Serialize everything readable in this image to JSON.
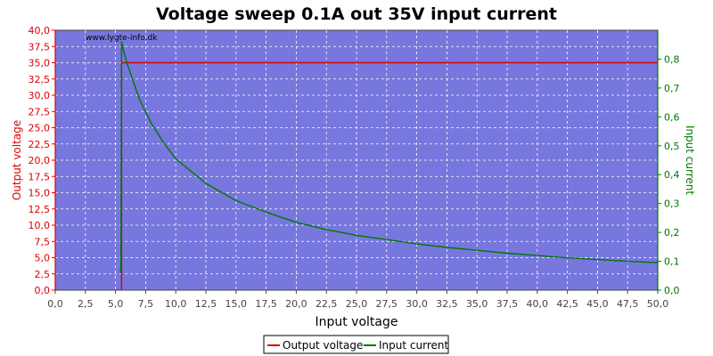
{
  "chart_data": {
    "type": "line",
    "title": "Voltage sweep 0.1A out 35V input current",
    "watermark": "www.lygte-info.dk",
    "xlabel": "Input voltage",
    "ylabel_left": "Output voltage",
    "ylabel_right": "Input current",
    "xlim": [
      0,
      50
    ],
    "ylim_left": [
      0,
      40
    ],
    "ylim_right": [
      0,
      0.9
    ],
    "x_ticks": [
      "0,0",
      "2,5",
      "5,0",
      "7,5",
      "10,0",
      "12,5",
      "15,0",
      "17,5",
      "20,0",
      "22,5",
      "25,0",
      "27,5",
      "30,0",
      "32,5",
      "35,0",
      "37,5",
      "40,0",
      "42,5",
      "45,0",
      "47,5",
      "50,0"
    ],
    "y_left_ticks": [
      "0,0",
      "2,5",
      "5,0",
      "7,5",
      "10,0",
      "12,5",
      "15,0",
      "17,5",
      "20,0",
      "22,5",
      "25,0",
      "27,5",
      "30,0",
      "32,5",
      "35,0",
      "37,5",
      "40,0"
    ],
    "y_right_ticks": [
      "0,0",
      "0,1",
      "0,2",
      "0,3",
      "0,4",
      "0,5",
      "0,6",
      "0,7",
      "0,8"
    ],
    "grid": true,
    "legend_position": "bottom-center",
    "colors": {
      "plot_bg": "#7777dd",
      "output_voltage": "#dd0000",
      "input_current": "#007700",
      "left_axis": "#dd0000",
      "right_axis": "#007700"
    },
    "series": [
      {
        "name": "Output voltage",
        "axis": "left",
        "x": [
          5.5,
          5.5,
          5.6,
          50.0
        ],
        "y": [
          0.0,
          35.0,
          35.0,
          35.0
        ]
      },
      {
        "name": "Input current",
        "axis": "right",
        "x": [
          5.4,
          5.45,
          5.5,
          5.6,
          6.0,
          7.0,
          8.0,
          9.0,
          10.0,
          12.5,
          15.0,
          17.5,
          20.0,
          22.5,
          25.0,
          27.5,
          30.0,
          32.5,
          35.0,
          37.5,
          40.0,
          42.5,
          45.0,
          47.5,
          50.0
        ],
        "y": [
          0.06,
          0.08,
          0.86,
          0.84,
          0.78,
          0.66,
          0.575,
          0.51,
          0.455,
          0.37,
          0.31,
          0.27,
          0.235,
          0.21,
          0.19,
          0.175,
          0.16,
          0.148,
          0.138,
          0.128,
          0.12,
          0.112,
          0.106,
          0.1,
          0.095
        ]
      }
    ]
  }
}
